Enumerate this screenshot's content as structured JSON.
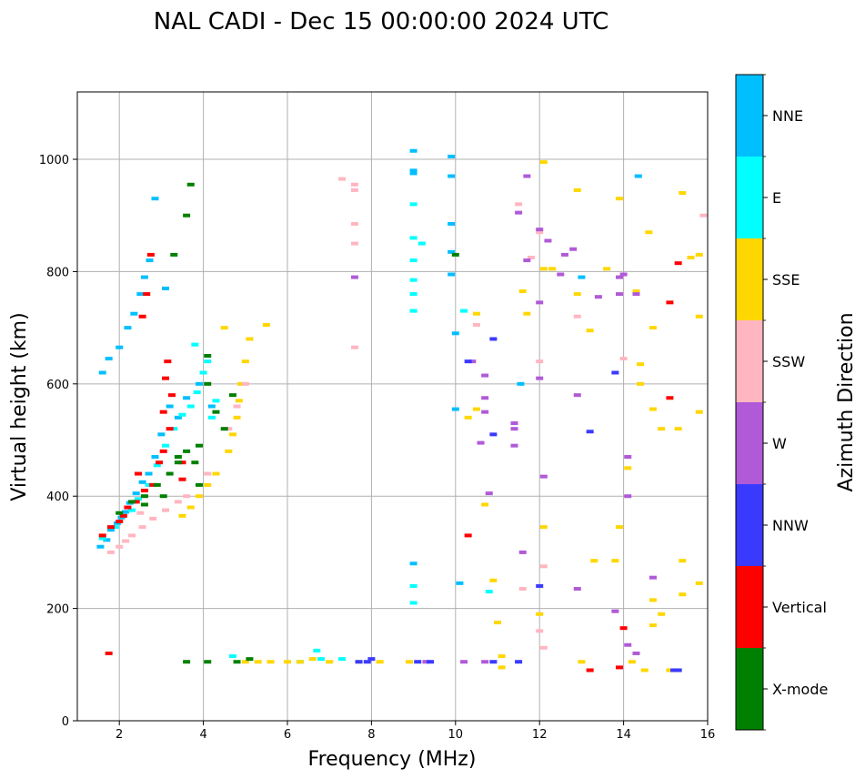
{
  "chart_data": {
    "type": "scatter",
    "title": "NAL CADI - Dec 15 00:00:00 2024 UTC",
    "xlabel": "Frequency (MHz)",
    "ylabel": "Virtual height (km)",
    "xlim": [
      1,
      16
    ],
    "ylim": [
      0,
      1120
    ],
    "xticks": [
      2,
      4,
      6,
      8,
      10,
      12,
      14,
      16
    ],
    "yticks": [
      0,
      200,
      400,
      600,
      800,
      1000
    ],
    "grid": true,
    "colorbar": {
      "label": "Azimuth Direction",
      "categories": [
        {
          "name": "X-mode",
          "color": "#008000"
        },
        {
          "name": "Vertical",
          "color": "#ff0000"
        },
        {
          "name": "NNW",
          "color": "#3a3aff"
        },
        {
          "name": "W",
          "color": "#b05ad8"
        },
        {
          "name": "SSW",
          "color": "#ffb6c1"
        },
        {
          "name": "SSE",
          "color": "#ffd700"
        },
        {
          "name": "E",
          "color": "#00ffff"
        },
        {
          "name": "NNE",
          "color": "#00bfff"
        }
      ]
    },
    "series": [
      {
        "name": "NNE",
        "points": [
          [
            1.55,
            310
          ],
          [
            1.7,
            322
          ],
          [
            1.8,
            340
          ],
          [
            1.95,
            352
          ],
          [
            2.05,
            362
          ],
          [
            2.15,
            372
          ],
          [
            2.25,
            388
          ],
          [
            2.4,
            405
          ],
          [
            2.55,
            425
          ],
          [
            2.7,
            440
          ],
          [
            2.85,
            470
          ],
          [
            3.0,
            510
          ],
          [
            3.2,
            560
          ],
          [
            3.4,
            540
          ],
          [
            3.6,
            575
          ],
          [
            3.9,
            600
          ],
          [
            1.6,
            620
          ],
          [
            1.75,
            645
          ],
          [
            2.0,
            665
          ],
          [
            2.2,
            700
          ],
          [
            2.35,
            725
          ],
          [
            2.5,
            760
          ],
          [
            2.6,
            790
          ],
          [
            2.72,
            820
          ],
          [
            2.85,
            930
          ],
          [
            3.1,
            770
          ],
          [
            4.2,
            560
          ],
          [
            9.0,
            1015
          ],
          [
            9.0,
            980
          ],
          [
            9.0,
            975
          ],
          [
            9.9,
            1005
          ],
          [
            9.9,
            970
          ],
          [
            9.9,
            885
          ],
          [
            9.9,
            835
          ],
          [
            9.9,
            795
          ],
          [
            10.0,
            690
          ],
          [
            10.0,
            555
          ],
          [
            11.55,
            600
          ],
          [
            13.0,
            790
          ],
          [
            14.35,
            970
          ],
          [
            9.0,
            280
          ],
          [
            10.1,
            245
          ]
        ]
      },
      {
        "name": "E",
        "points": [
          [
            1.6,
            325
          ],
          [
            1.9,
            345
          ],
          [
            2.1,
            365
          ],
          [
            2.3,
            375
          ],
          [
            2.45,
            395
          ],
          [
            2.7,
            420
          ],
          [
            2.9,
            455
          ],
          [
            3.1,
            490
          ],
          [
            3.3,
            520
          ],
          [
            3.5,
            545
          ],
          [
            3.7,
            560
          ],
          [
            3.85,
            585
          ],
          [
            4.0,
            620
          ],
          [
            4.2,
            540
          ],
          [
            3.8,
            670
          ],
          [
            4.1,
            640
          ],
          [
            4.3,
            570
          ],
          [
            9.0,
            760
          ],
          [
            9.0,
            730
          ],
          [
            9.0,
            920
          ],
          [
            9.0,
            860
          ],
          [
            9.0,
            820
          ],
          [
            9.0,
            785
          ],
          [
            9.2,
            850
          ],
          [
            9.0,
            240
          ],
          [
            9.0,
            210
          ],
          [
            10.2,
            730
          ],
          [
            10.8,
            230
          ],
          [
            6.7,
            125
          ],
          [
            6.8,
            110
          ],
          [
            7.3,
            110
          ],
          [
            6.3,
            105
          ],
          [
            4.7,
            115
          ]
        ]
      },
      {
        "name": "SSE",
        "points": [
          [
            3.5,
            365
          ],
          [
            3.7,
            380
          ],
          [
            3.9,
            400
          ],
          [
            4.1,
            420
          ],
          [
            4.3,
            440
          ],
          [
            4.6,
            480
          ],
          [
            4.7,
            510
          ],
          [
            4.8,
            540
          ],
          [
            4.85,
            570
          ],
          [
            4.9,
            600
          ],
          [
            5.0,
            640
          ],
          [
            5.1,
            680
          ],
          [
            4.5,
            700
          ],
          [
            5.5,
            705
          ],
          [
            5.0,
            105
          ],
          [
            5.3,
            105
          ],
          [
            5.6,
            105
          ],
          [
            6.0,
            105
          ],
          [
            6.3,
            105
          ],
          [
            6.6,
            110
          ],
          [
            7.0,
            105
          ],
          [
            7.7,
            105
          ],
          [
            8.2,
            105
          ],
          [
            8.9,
            105
          ],
          [
            10.3,
            540
          ],
          [
            10.5,
            555
          ],
          [
            10.5,
            725
          ],
          [
            10.7,
            385
          ],
          [
            10.9,
            250
          ],
          [
            11.0,
            175
          ],
          [
            11.6,
            765
          ],
          [
            11.7,
            725
          ],
          [
            12.1,
            995
          ],
          [
            12.1,
            805
          ],
          [
            12.3,
            805
          ],
          [
            12.9,
            945
          ],
          [
            12.9,
            760
          ],
          [
            13.0,
            105
          ],
          [
            13.2,
            695
          ],
          [
            13.3,
            285
          ],
          [
            13.8,
            285
          ],
          [
            13.6,
            805
          ],
          [
            13.9,
            345
          ],
          [
            13.9,
            930
          ],
          [
            14.3,
            765
          ],
          [
            14.4,
            635
          ],
          [
            14.4,
            600
          ],
          [
            14.6,
            870
          ],
          [
            14.7,
            700
          ],
          [
            14.7,
            555
          ],
          [
            14.9,
            520
          ],
          [
            14.1,
            450
          ],
          [
            14.2,
            105
          ],
          [
            14.5,
            90
          ],
          [
            15.3,
            520
          ],
          [
            15.4,
            940
          ],
          [
            15.4,
            285
          ],
          [
            15.6,
            825
          ],
          [
            15.8,
            830
          ],
          [
            15.8,
            720
          ],
          [
            15.8,
            550
          ],
          [
            15.8,
            245
          ],
          [
            15.4,
            225
          ],
          [
            14.9,
            190
          ],
          [
            14.7,
            170
          ],
          [
            14.7,
            215
          ],
          [
            15.1,
            90
          ],
          [
            12.0,
            190
          ],
          [
            12.1,
            345
          ],
          [
            11.1,
            115
          ],
          [
            11.1,
            95
          ]
        ]
      },
      {
        "name": "SSW",
        "points": [
          [
            1.8,
            300
          ],
          [
            2.0,
            310
          ],
          [
            2.15,
            320
          ],
          [
            2.3,
            330
          ],
          [
            2.55,
            345
          ],
          [
            2.8,
            360
          ],
          [
            3.1,
            375
          ],
          [
            3.4,
            390
          ],
          [
            3.6,
            400
          ],
          [
            4.1,
            440
          ],
          [
            4.6,
            520
          ],
          [
            4.8,
            560
          ],
          [
            5.0,
            600
          ],
          [
            2.5,
            370
          ],
          [
            7.3,
            965
          ],
          [
            7.6,
            955
          ],
          [
            7.6,
            945
          ],
          [
            7.6,
            885
          ],
          [
            7.6,
            850
          ],
          [
            7.6,
            665
          ],
          [
            10.5,
            705
          ],
          [
            11.5,
            920
          ],
          [
            11.8,
            825
          ],
          [
            12.0,
            870
          ],
          [
            12.0,
            640
          ],
          [
            12.1,
            275
          ],
          [
            11.6,
            235
          ],
          [
            12.0,
            160
          ],
          [
            12.1,
            130
          ],
          [
            15.9,
            900
          ],
          [
            14.0,
            645
          ],
          [
            12.9,
            720
          ]
        ]
      },
      {
        "name": "W",
        "points": [
          [
            11.7,
            970
          ],
          [
            11.5,
            905
          ],
          [
            11.7,
            820
          ],
          [
            12.0,
            875
          ],
          [
            12.0,
            745
          ],
          [
            12.2,
            855
          ],
          [
            12.5,
            795
          ],
          [
            12.6,
            830
          ],
          [
            12.8,
            840
          ],
          [
            12.9,
            580
          ],
          [
            12.9,
            235
          ],
          [
            13.4,
            755
          ],
          [
            13.9,
            760
          ],
          [
            13.9,
            790
          ],
          [
            14.0,
            795
          ],
          [
            14.3,
            760
          ],
          [
            14.1,
            470
          ],
          [
            14.1,
            400
          ],
          [
            14.1,
            135
          ],
          [
            13.8,
            195
          ],
          [
            14.7,
            255
          ],
          [
            14.3,
            120
          ],
          [
            11.4,
            530
          ],
          [
            11.4,
            520
          ],
          [
            11.4,
            490
          ],
          [
            10.7,
            615
          ],
          [
            10.7,
            575
          ],
          [
            10.7,
            550
          ],
          [
            10.8,
            405
          ],
          [
            10.6,
            495
          ],
          [
            11.6,
            300
          ],
          [
            10.4,
            640
          ],
          [
            10.2,
            105
          ],
          [
            10.7,
            105
          ],
          [
            12.1,
            435
          ],
          [
            12.0,
            610
          ],
          [
            7.6,
            790
          ],
          [
            9.3,
            105
          ]
        ]
      },
      {
        "name": "NNW",
        "points": [
          [
            7.7,
            105
          ],
          [
            7.9,
            105
          ],
          [
            8.0,
            110
          ],
          [
            9.1,
            105
          ],
          [
            9.4,
            105
          ],
          [
            10.3,
            640
          ],
          [
            10.9,
            510
          ],
          [
            10.9,
            105
          ],
          [
            11.5,
            105
          ],
          [
            12.0,
            240
          ],
          [
            13.2,
            515
          ],
          [
            13.8,
            620
          ],
          [
            15.2,
            90
          ],
          [
            15.3,
            90
          ],
          [
            10.9,
            680
          ]
        ]
      },
      {
        "name": "Vertical",
        "points": [
          [
            1.6,
            330
          ],
          [
            1.8,
            345
          ],
          [
            2.0,
            355
          ],
          [
            2.1,
            365
          ],
          [
            2.2,
            380
          ],
          [
            2.4,
            390
          ],
          [
            2.6,
            410
          ],
          [
            2.8,
            420
          ],
          [
            2.95,
            460
          ],
          [
            3.05,
            480
          ],
          [
            3.2,
            520
          ],
          [
            3.05,
            550
          ],
          [
            3.1,
            610
          ],
          [
            3.15,
            640
          ],
          [
            3.25,
            580
          ],
          [
            3.5,
            430
          ],
          [
            3.5,
            460
          ],
          [
            2.55,
            720
          ],
          [
            2.65,
            760
          ],
          [
            2.75,
            830
          ],
          [
            1.75,
            120
          ],
          [
            2.45,
            440
          ],
          [
            10.3,
            330
          ],
          [
            13.2,
            90
          ],
          [
            13.9,
            95
          ],
          [
            14.0,
            165
          ],
          [
            15.1,
            745
          ],
          [
            15.1,
            575
          ],
          [
            15.3,
            815
          ]
        ]
      },
      {
        "name": "X-mode",
        "points": [
          [
            2.0,
            370
          ],
          [
            2.3,
            390
          ],
          [
            2.6,
            400
          ],
          [
            2.9,
            420
          ],
          [
            3.2,
            440
          ],
          [
            3.4,
            460
          ],
          [
            3.6,
            480
          ],
          [
            3.8,
            460
          ],
          [
            3.9,
            420
          ],
          [
            4.1,
            650
          ],
          [
            4.1,
            600
          ],
          [
            4.3,
            550
          ],
          [
            4.5,
            520
          ],
          [
            4.7,
            580
          ],
          [
            3.6,
            900
          ],
          [
            3.7,
            955
          ],
          [
            3.3,
            830
          ],
          [
            3.6,
            105
          ],
          [
            4.1,
            105
          ],
          [
            4.8,
            105
          ],
          [
            5.1,
            110
          ],
          [
            10.0,
            830
          ],
          [
            3.4,
            470
          ],
          [
            3.9,
            490
          ],
          [
            2.6,
            385
          ],
          [
            3.05,
            400
          ]
        ]
      }
    ]
  }
}
